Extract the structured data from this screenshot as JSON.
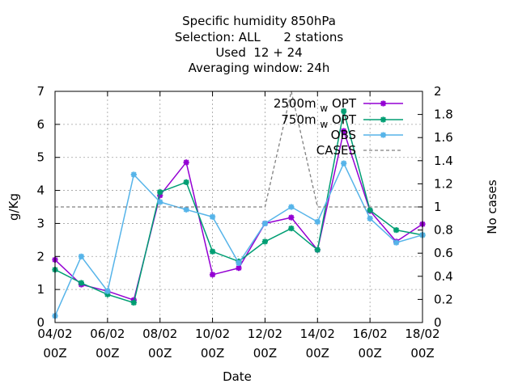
{
  "chart_data": {
    "type": "line",
    "title_lines": [
      "Specific humidity 850hPa",
      "Selection: ALL      2 stations",
      "Used  12 + 24",
      "Averaging window: 24h"
    ],
    "xlabel": "Date",
    "ylabel": "g/Kg",
    "y2label": "No cases",
    "xlim": [
      0,
      14
    ],
    "ylim": [
      0,
      7
    ],
    "y2lim": [
      0,
      2
    ],
    "x_ticks": [
      {
        "x": 0,
        "line1": "04/02",
        "line2": "00Z"
      },
      {
        "x": 2,
        "line1": "06/02",
        "line2": "00Z"
      },
      {
        "x": 4,
        "line1": "08/02",
        "line2": "00Z"
      },
      {
        "x": 6,
        "line1": "10/02",
        "line2": "00Z"
      },
      {
        "x": 8,
        "line1": "12/02",
        "line2": "00Z"
      },
      {
        "x": 10,
        "line1": "14/02",
        "line2": "00Z"
      },
      {
        "x": 12,
        "line1": "16/02",
        "line2": "00Z"
      },
      {
        "x": 14,
        "line1": "18/02",
        "line2": "00Z"
      }
    ],
    "y_ticks": [
      0,
      1,
      2,
      3,
      4,
      5,
      6,
      7
    ],
    "y2_ticks": [
      {
        "v": 0,
        "label": "0"
      },
      {
        "v": 0.2,
        "label": "0.2"
      },
      {
        "v": 0.4,
        "label": "0.4"
      },
      {
        "v": 0.6,
        "label": "0.6"
      },
      {
        "v": 0.8,
        "label": "0.8"
      },
      {
        "v": 1,
        "label": "1"
      },
      {
        "v": 1.2,
        "label": "1.2"
      },
      {
        "v": 1.4,
        "label": "1.4"
      },
      {
        "v": 1.6,
        "label": "1.6"
      },
      {
        "v": 1.8,
        "label": "1.8"
      },
      {
        "v": 2,
        "label": "2"
      }
    ],
    "grid": true,
    "legend_position": "top-right",
    "series": [
      {
        "name": "2500m OPT",
        "legend_prefix": "2500m",
        "legend_sub": "w",
        "legend_suffix": "OPT",
        "color": "#9400d3",
        "axis": "y1",
        "marker": "star",
        "x": [
          0,
          1,
          2,
          3,
          4,
          5,
          6,
          7,
          8,
          9,
          10,
          11,
          12,
          13,
          14
        ],
        "y": [
          1.9,
          1.15,
          0.95,
          0.68,
          3.85,
          4.85,
          1.45,
          1.65,
          3.0,
          3.18,
          2.2,
          5.8,
          3.38,
          2.45,
          2.98
        ]
      },
      {
        "name": "750m OPT",
        "legend_prefix": "750m",
        "legend_sub": "w",
        "legend_suffix": "OPT",
        "color": "#009e73",
        "axis": "y1",
        "marker": "star",
        "x": [
          0,
          1,
          2,
          3,
          4,
          5,
          6,
          7,
          8,
          9,
          10,
          11,
          12,
          13,
          14
        ],
        "y": [
          1.6,
          1.2,
          0.85,
          0.6,
          3.95,
          4.25,
          2.15,
          1.85,
          2.45,
          2.85,
          2.2,
          6.4,
          3.4,
          2.8,
          2.65
        ]
      },
      {
        "name": "OBS",
        "legend_prefix": "OBS",
        "legend_sub": "",
        "legend_suffix": "",
        "color": "#56b4e9",
        "axis": "y1",
        "marker": "star",
        "x": [
          0,
          1,
          2,
          3,
          4,
          5,
          6,
          7,
          8,
          9,
          10,
          11,
          12,
          13,
          14
        ],
        "y": [
          0.2,
          2.0,
          0.95,
          4.48,
          3.65,
          3.42,
          3.2,
          1.8,
          3.0,
          3.5,
          3.05,
          4.82,
          3.15,
          2.42,
          2.65
        ]
      },
      {
        "name": "CASES",
        "legend_prefix": "CASES",
        "legend_sub": "",
        "legend_suffix": "",
        "color": "#808080",
        "axis": "y2",
        "marker": "none",
        "dashed": true,
        "x": [
          0,
          1,
          2,
          3,
          4,
          5,
          6,
          7,
          8,
          9,
          10,
          11,
          12,
          13,
          14
        ],
        "y": [
          1,
          1,
          1,
          1,
          1,
          1,
          1,
          1,
          1,
          2,
          1,
          1,
          1,
          1,
          1
        ]
      }
    ]
  }
}
